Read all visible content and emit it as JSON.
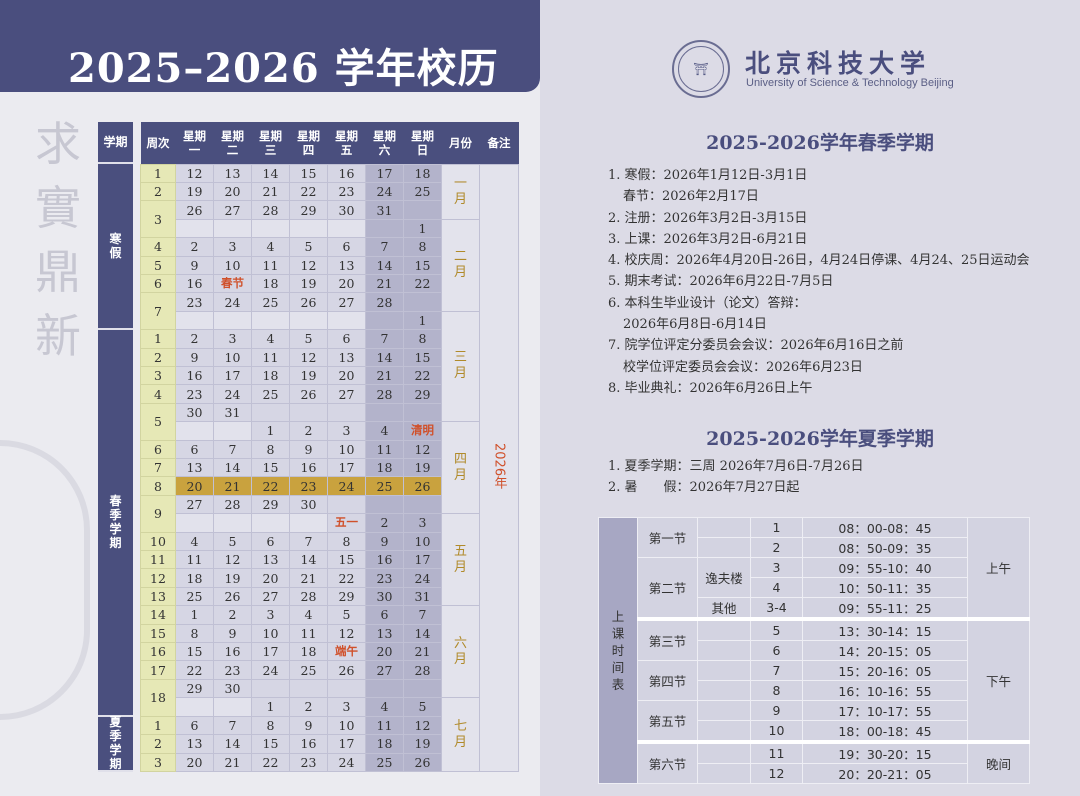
{
  "header": {
    "title": "2025–2026 学年校历"
  },
  "motto": "求實鼎新",
  "calendar": {
    "headers": [
      "学期",
      "周次",
      "星期\n一",
      "星期\n二",
      "星期\n三",
      "星期\n四",
      "星期\n五",
      "星期\n六",
      "星期\n日",
      "月份",
      "备注"
    ],
    "remark": "2026年",
    "months": [
      "一\n月",
      "二\n月",
      "三\n月",
      "四\n月",
      "五\n月",
      "六\n月",
      "七\n月"
    ],
    "semesters": [
      {
        "label": "寒\n假",
        "weeks": [
          {
            "week": "1",
            "lines": [
              [
                "12",
                "13",
                "14",
                "15",
                "16",
                "17",
                "18"
              ]
            ]
          },
          {
            "week": "2",
            "lines": [
              [
                "19",
                "20",
                "21",
                "22",
                "23",
                "24",
                "25"
              ]
            ]
          },
          {
            "week": "3",
            "lines": [
              [
                "26",
                "27",
                "28",
                "29",
                "30",
                "31",
                ""
              ],
              [
                "",
                "",
                "",
                "",
                "",
                "",
                "1"
              ]
            ]
          },
          {
            "week": "4",
            "lines": [
              [
                "2",
                "3",
                "4",
                "5",
                "6",
                "7",
                "8"
              ]
            ]
          },
          {
            "week": "5",
            "lines": [
              [
                "9",
                "10",
                "11",
                "12",
                "13",
                "14",
                "15"
              ]
            ]
          },
          {
            "week": "6",
            "lines": [
              [
                "16",
                "春节",
                "18",
                "19",
                "20",
                "21",
                "22"
              ]
            ]
          },
          {
            "week": "7",
            "lines": [
              [
                "23",
                "24",
                "25",
                "26",
                "27",
                "28",
                ""
              ],
              [
                "",
                "",
                "",
                "",
                "",
                "",
                "1"
              ]
            ]
          }
        ]
      },
      {
        "label": "春\n季\n学\n期",
        "weeks": [
          {
            "week": "1",
            "lines": [
              [
                "2",
                "3",
                "4",
                "5",
                "6",
                "7",
                "8"
              ]
            ]
          },
          {
            "week": "2",
            "lines": [
              [
                "9",
                "10",
                "11",
                "12",
                "13",
                "14",
                "15"
              ]
            ]
          },
          {
            "week": "3",
            "lines": [
              [
                "16",
                "17",
                "18",
                "19",
                "20",
                "21",
                "22"
              ]
            ]
          },
          {
            "week": "4",
            "lines": [
              [
                "23",
                "24",
                "25",
                "26",
                "27",
                "28",
                "29"
              ]
            ]
          },
          {
            "week": "5",
            "lines": [
              [
                "30",
                "31",
                "",
                "",
                "",
                "",
                ""
              ],
              [
                "",
                "",
                "1",
                "2",
                "3",
                "4",
                "清明"
              ]
            ]
          },
          {
            "week": "6",
            "lines": [
              [
                "6",
                "7",
                "8",
                "9",
                "10",
                "11",
                "12"
              ]
            ]
          },
          {
            "week": "7",
            "lines": [
              [
                "13",
                "14",
                "15",
                "16",
                "17",
                "18",
                "19"
              ]
            ]
          },
          {
            "week": "8",
            "highlight": true,
            "lines": [
              [
                "20",
                "21",
                "22",
                "23",
                "24",
                "25",
                "26"
              ]
            ]
          },
          {
            "week": "9",
            "lines": [
              [
                "27",
                "28",
                "29",
                "30",
                "",
                "",
                ""
              ],
              [
                "",
                "",
                "",
                "",
                "五一",
                "2",
                "3"
              ]
            ]
          },
          {
            "week": "10",
            "lines": [
              [
                "4",
                "5",
                "6",
                "7",
                "8",
                "9",
                "10"
              ]
            ]
          },
          {
            "week": "11",
            "lines": [
              [
                "11",
                "12",
                "13",
                "14",
                "15",
                "16",
                "17"
              ]
            ]
          },
          {
            "week": "12",
            "lines": [
              [
                "18",
                "19",
                "20",
                "21",
                "22",
                "23",
                "24"
              ]
            ]
          },
          {
            "week": "13",
            "lines": [
              [
                "25",
                "26",
                "27",
                "28",
                "29",
                "30",
                "31"
              ]
            ]
          },
          {
            "week": "14",
            "lines": [
              [
                "1",
                "2",
                "3",
                "4",
                "5",
                "6",
                "7"
              ]
            ]
          },
          {
            "week": "15",
            "lines": [
              [
                "8",
                "9",
                "10",
                "11",
                "12",
                "13",
                "14"
              ]
            ]
          },
          {
            "week": "16",
            "lines": [
              [
                "15",
                "16",
                "17",
                "18",
                "端午",
                "20",
                "21"
              ]
            ]
          },
          {
            "week": "17",
            "lines": [
              [
                "22",
                "23",
                "24",
                "25",
                "26",
                "27",
                "28"
              ]
            ]
          },
          {
            "week": "18",
            "lines": [
              [
                "29",
                "30",
                "",
                "",
                "",
                "",
                ""
              ],
              [
                "",
                "",
                "1",
                "2",
                "3",
                "4",
                "5"
              ]
            ]
          }
        ]
      },
      {
        "label": "夏\n季\n学\n期",
        "weeks": [
          {
            "week": "1",
            "lines": [
              [
                "6",
                "7",
                "8",
                "9",
                "10",
                "11",
                "12"
              ]
            ]
          },
          {
            "week": "2",
            "lines": [
              [
                "13",
                "14",
                "15",
                "16",
                "17",
                "18",
                "19"
              ]
            ]
          },
          {
            "week": "3",
            "lines": [
              [
                "20",
                "21",
                "22",
                "23",
                "24",
                "25",
                "26"
              ]
            ]
          }
        ]
      }
    ],
    "colors": {
      "header": "#4a4f7e",
      "week_col": "#e6e8b6",
      "weekend": "#b3b3cb",
      "highlight": "#c9a23e",
      "holiday": "#d0502a",
      "month": "#b08a2a"
    }
  },
  "university": {
    "name_cn": "北京科技大学",
    "name_en": "University of Science & Technology Beijing"
  },
  "spring": {
    "title": "2025-2026学年春季学期",
    "items": [
      {
        "text": "1. 寒假：2026年1月12日-3月1日"
      },
      {
        "text": "春节：2026年2月17日",
        "indent": true
      },
      {
        "text": "2. 注册：2026年3月2日-3月15日"
      },
      {
        "text": "3. 上课：2026年3月2日-6月21日"
      },
      {
        "text": "4. 校庆周：2026年4月20日-26日，4月24日停课、4月24、25日运动会"
      },
      {
        "text": "5. 期末考试：2026年6月22日-7月5日"
      },
      {
        "text": "6. 本科生毕业设计（论文）答辩："
      },
      {
        "text": "2026年6月8日-6月14日",
        "indent": true
      },
      {
        "text": "7. 院学位评定分委员会会议：2026年6月16日之前"
      },
      {
        "text": "校学位评定委员会会议：2026年6月23日",
        "indent": true
      },
      {
        "text": "8. 毕业典礼：2026年6月26日上午"
      }
    ]
  },
  "summer": {
    "title": "2025-2026学年夏季学期",
    "items": [
      {
        "text": "1. 夏季学期：三周 2026年7月6日-7月26日"
      },
      {
        "text": "2. 暑　　假：2026年7月27日起"
      }
    ]
  },
  "schedule": {
    "label": "上\n课\n时\n间\n表",
    "sessions": [
      {
        "name": "第一节",
        "rows": [
          {
            "bld": "",
            "num": "1",
            "time": "08：00-08：45"
          },
          {
            "bld": "",
            "num": "2",
            "time": "08：50-09：35"
          }
        ]
      },
      {
        "name": "第二节",
        "rows": [
          {
            "bld": "逸夫楼",
            "num": "3",
            "time": "09：55-10：40"
          },
          {
            "bld": null,
            "num": "4",
            "time": "10：50-11：35"
          },
          {
            "bld": "其他",
            "num": "3-4",
            "time": "09：55-11：25"
          }
        ]
      },
      {
        "name": "第三节",
        "rows": [
          {
            "bld": "",
            "num": "5",
            "time": "13：30-14：15"
          },
          {
            "bld": "",
            "num": "6",
            "time": "14：20-15：05"
          }
        ]
      },
      {
        "name": "第四节",
        "rows": [
          {
            "bld": "",
            "num": "7",
            "time": "15：20-16：05"
          },
          {
            "bld": "",
            "num": "8",
            "time": "16：10-16：55"
          }
        ]
      },
      {
        "name": "第五节",
        "rows": [
          {
            "bld": "",
            "num": "9",
            "time": "17：10-17：55"
          },
          {
            "bld": "",
            "num": "10",
            "time": "18：00-18：45"
          }
        ]
      },
      {
        "name": "第六节",
        "rows": [
          {
            "bld": "",
            "num": "11",
            "time": "19：30-20：15"
          },
          {
            "bld": "",
            "num": "12",
            "time": "20：20-21：05"
          }
        ]
      }
    ],
    "periods": [
      "上午",
      "下午",
      "晚间"
    ]
  }
}
